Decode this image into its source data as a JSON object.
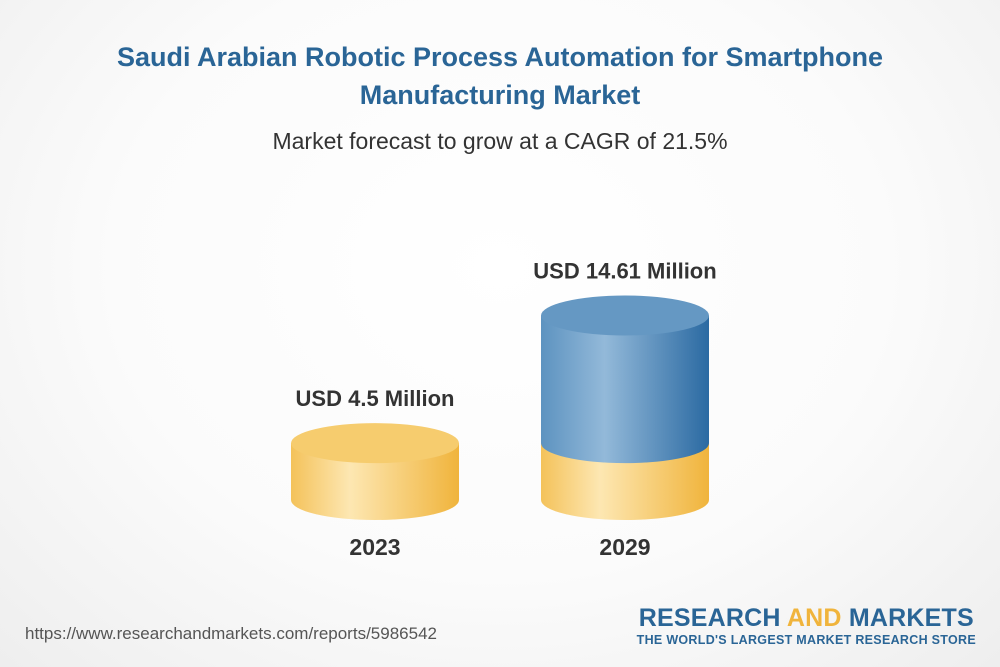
{
  "header": {
    "title": "Saudi Arabian Robotic Process Automation for Smartphone Manufacturing Market",
    "subtitle": "Market forecast to grow at a CAGR of 21.5%"
  },
  "chart_data": {
    "type": "bar",
    "style": "3d-cylinder",
    "categories": [
      "2023",
      "2029"
    ],
    "values": [
      4.5,
      14.61
    ],
    "value_labels": [
      "USD 4.5 Million",
      "USD 14.61 Million"
    ],
    "unit": "USD Million",
    "colors": {
      "base": "#f4c55a",
      "growth": "#3f7fb4"
    }
  },
  "footer": {
    "url": "https://www.researchandmarkets.com/reports/5986542"
  },
  "logo": {
    "word1": "RESEARCH",
    "word2": "AND",
    "word3": "MARKETS",
    "tagline": "THE WORLD'S LARGEST MARKET RESEARCH STORE"
  }
}
